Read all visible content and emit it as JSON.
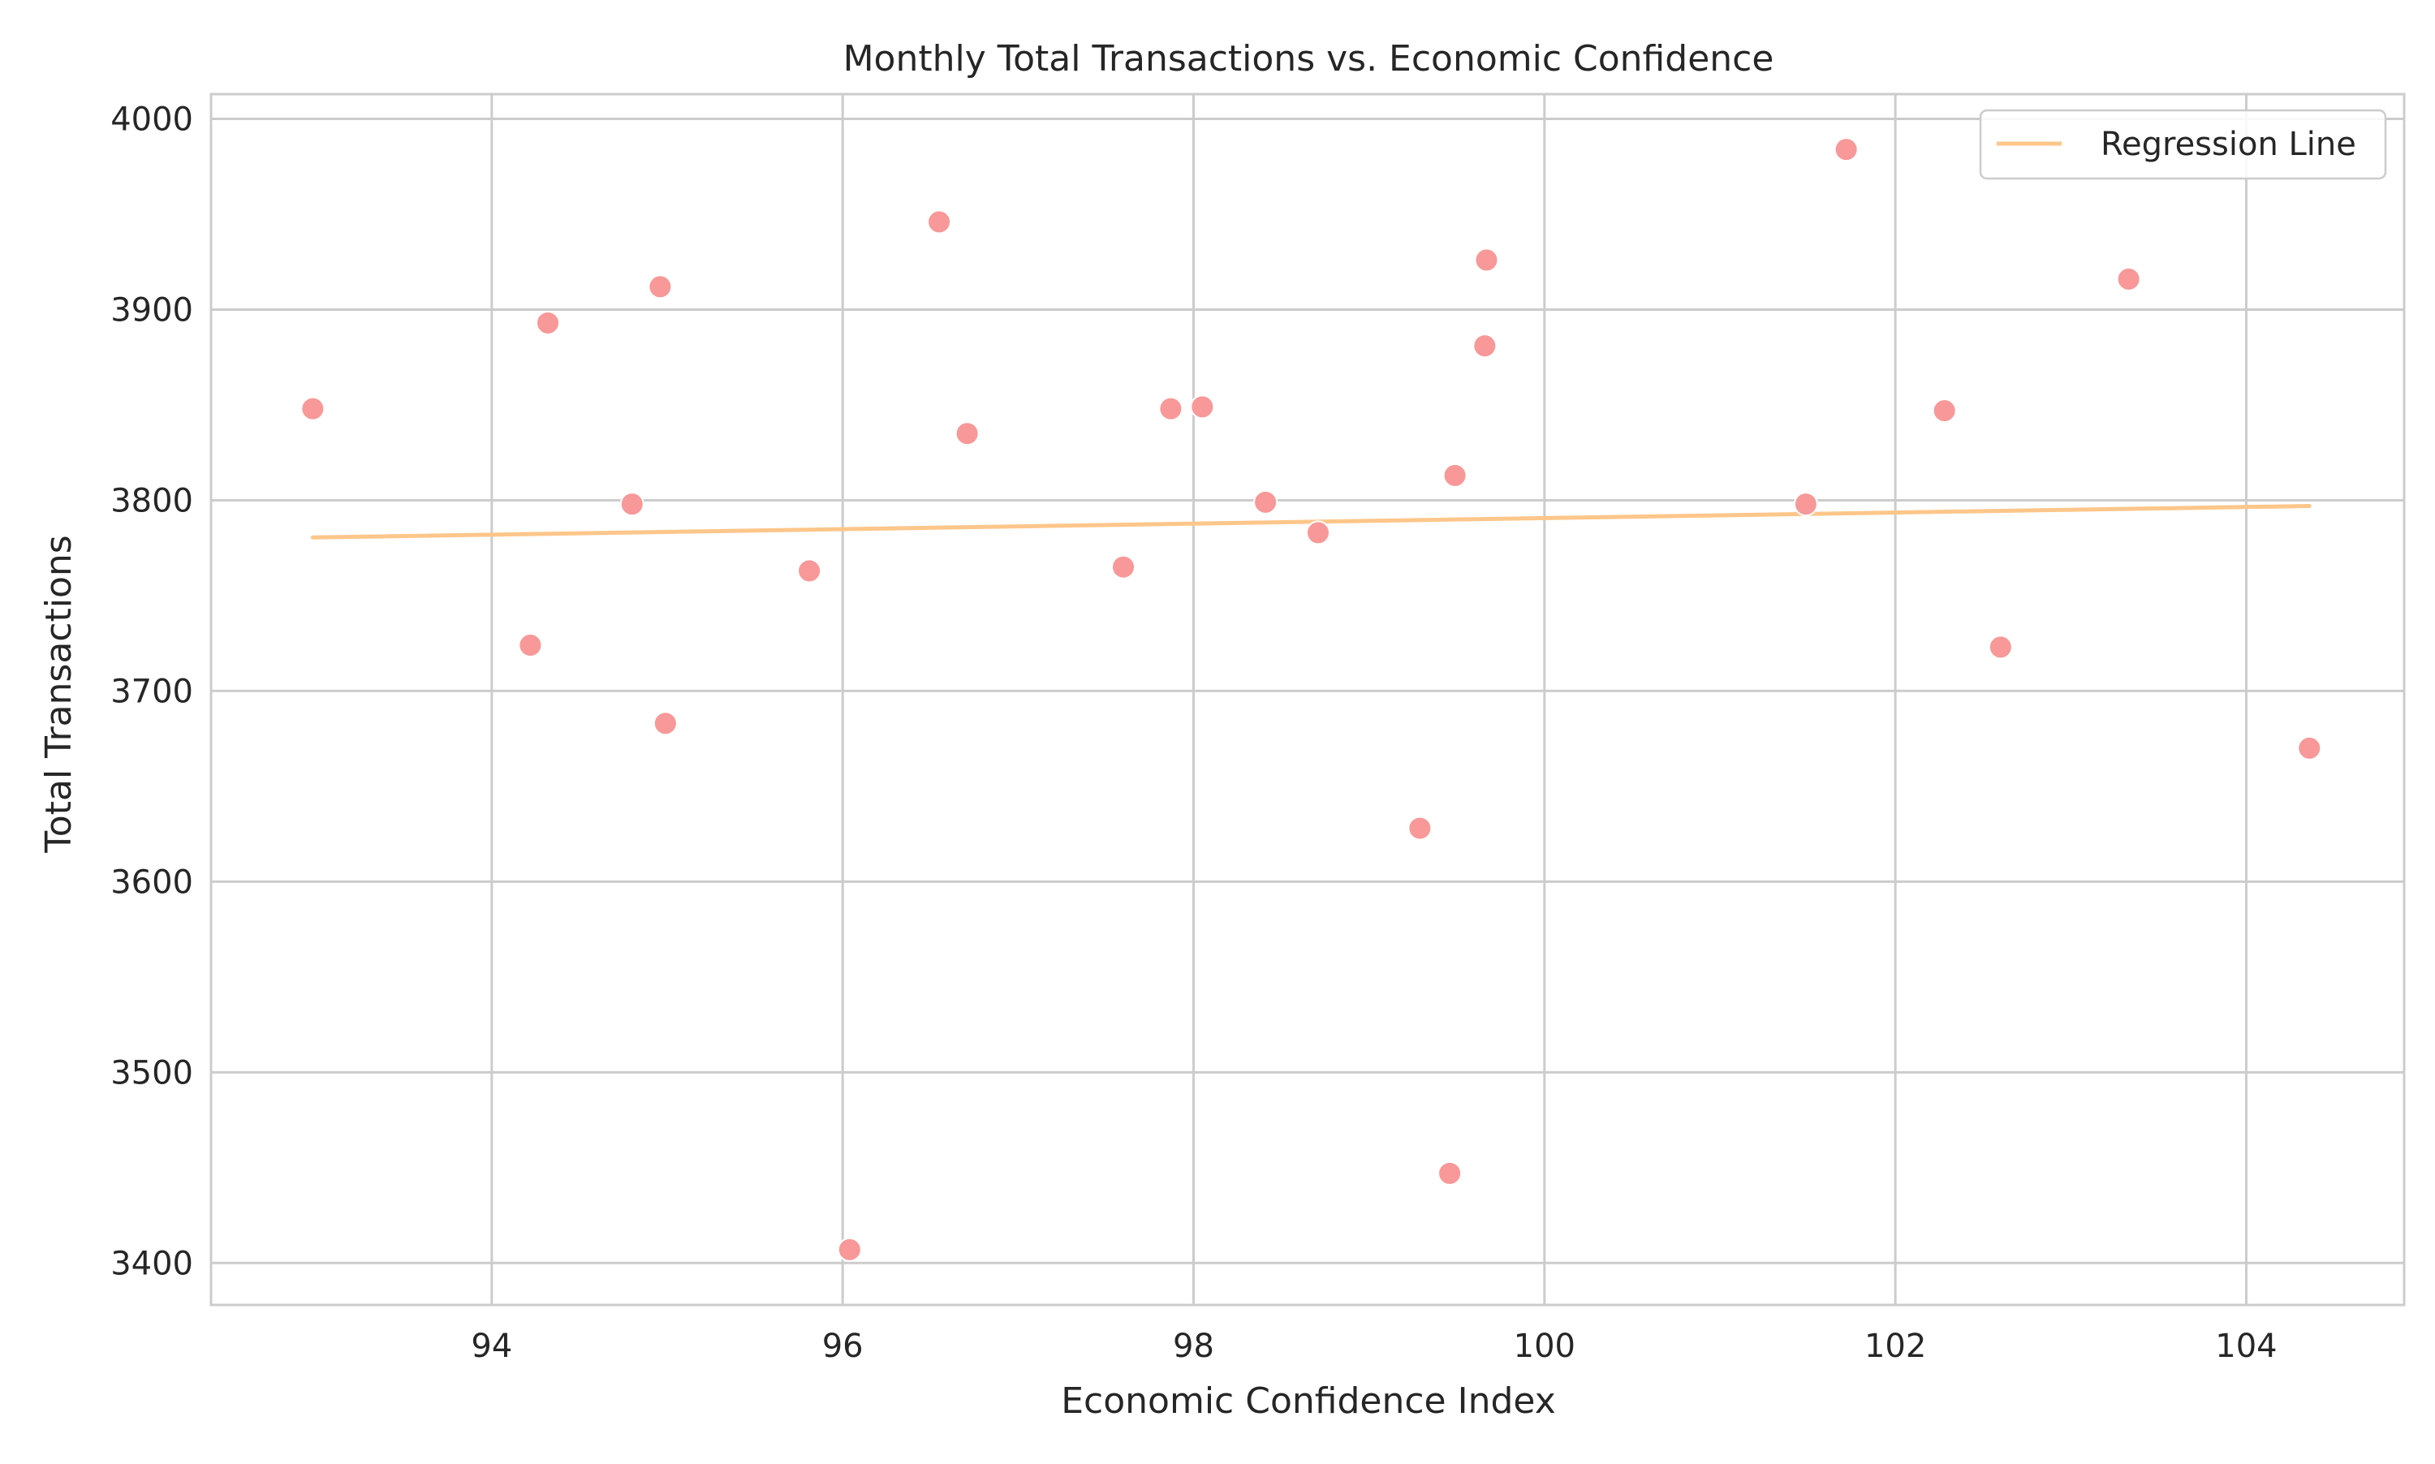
{
  "chart_data": {
    "type": "scatter",
    "title": "Monthly Total Transactions vs. Economic Confidence",
    "xlabel": "Economic Confidence Index",
    "ylabel": "Total Transactions",
    "xlim": [
      92.4,
      104.9
    ],
    "ylim": [
      3378,
      4013
    ],
    "xticks": [
      94,
      96,
      98,
      100,
      102,
      104
    ],
    "yticks": [
      3400,
      3500,
      3600,
      3700,
      3800,
      3900,
      4000
    ],
    "grid": true,
    "legend": {
      "placement": "top-right",
      "entries": [
        "Regression Line"
      ]
    },
    "series": [
      {
        "kind": "scatter",
        "color": "#f89898",
        "x": [
          92.98,
          94.22,
          94.32,
          94.8,
          94.96,
          94.99,
          95.81,
          96.04,
          96.55,
          96.71,
          97.6,
          97.87,
          98.05,
          98.41,
          98.71,
          99.29,
          99.46,
          99.49,
          99.66,
          99.67,
          101.49,
          101.72,
          102.28,
          102.6,
          103.33,
          104.36
        ],
        "y": [
          3848,
          3724,
          3893,
          3798,
          3912,
          3683,
          3763,
          3407,
          3946,
          3835,
          3765,
          3848,
          3849,
          3799,
          3783,
          3628,
          3447,
          3813,
          3881,
          3926,
          3798,
          3984,
          3847,
          3723,
          3916,
          3670
        ]
      },
      {
        "kind": "line",
        "name": "Regression Line",
        "color": "#fec68a",
        "x": [
          92.98,
          104.36
        ],
        "y": [
          3780.5,
          3797
        ]
      }
    ]
  }
}
